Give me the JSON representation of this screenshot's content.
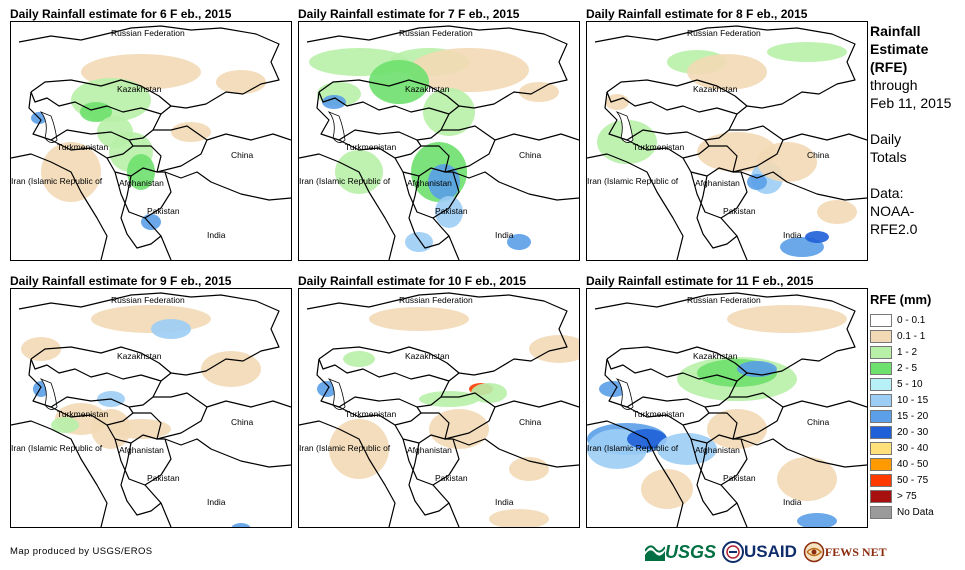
{
  "panels": [
    {
      "title": "Daily Rainfall estimate for 6 F eb., 2015"
    },
    {
      "title": "Daily Rainfall estimate for 7 F eb., 2015"
    },
    {
      "title": "Daily Rainfall estimate for 8 F eb., 2015"
    },
    {
      "title": "Daily Rainfall estimate for 9 F eb., 2015"
    },
    {
      "title": "Daily Rainfall estimate for 10 F eb., 2015"
    },
    {
      "title": "Daily Rainfall estimate for 11 F eb., 2015"
    }
  ],
  "map_labels": {
    "russia": "Russian Federation",
    "kazakhstan": "Kazakhstan",
    "turkmenistan": "Turkmenistan",
    "china": "China",
    "iran": "Iran (Islamic Republic of",
    "afghanistan": "Afghanistan",
    "pakistan": "Pakistan",
    "india": "India"
  },
  "side": {
    "line1": "Rainfall",
    "line2": "Estimate",
    "line3": "(RFE)",
    "line4": "through",
    "line5": "Feb 11, 2015",
    "line6": "Daily",
    "line7": "Totals",
    "line8": "Data:",
    "line9": "NOAA-",
    "line10": "RFE2.0"
  },
  "legend": {
    "title": "RFE (mm)",
    "items": [
      {
        "label": "0 - 0.1",
        "color": "#ffffff"
      },
      {
        "label": "0.1 - 1",
        "color": "#f2d9b5"
      },
      {
        "label": "1 - 2",
        "color": "#b8f0a8"
      },
      {
        "label": "2 - 5",
        "color": "#6ee06e"
      },
      {
        "label": "5 - 10",
        "color": "#b8f0f8"
      },
      {
        "label": "10 - 15",
        "color": "#9ccdf5"
      },
      {
        "label": "15 - 20",
        "color": "#5a9fe8"
      },
      {
        "label": "20 - 30",
        "color": "#1f5fd8"
      },
      {
        "label": "30 - 40",
        "color": "#ffe07a"
      },
      {
        "label": "40 - 50",
        "color": "#ff9a00"
      },
      {
        "label": "50 - 75",
        "color": "#ff3a00"
      },
      {
        "label": "> 75",
        "color": "#a81010"
      },
      {
        "label": "No Data",
        "color": "#9a9a9a"
      }
    ]
  },
  "footer": {
    "credit": "Map produced by USGS/EROS"
  },
  "logos": {
    "usgs": "USGS",
    "usaid": "USAID",
    "fews": "FEWS NET"
  }
}
